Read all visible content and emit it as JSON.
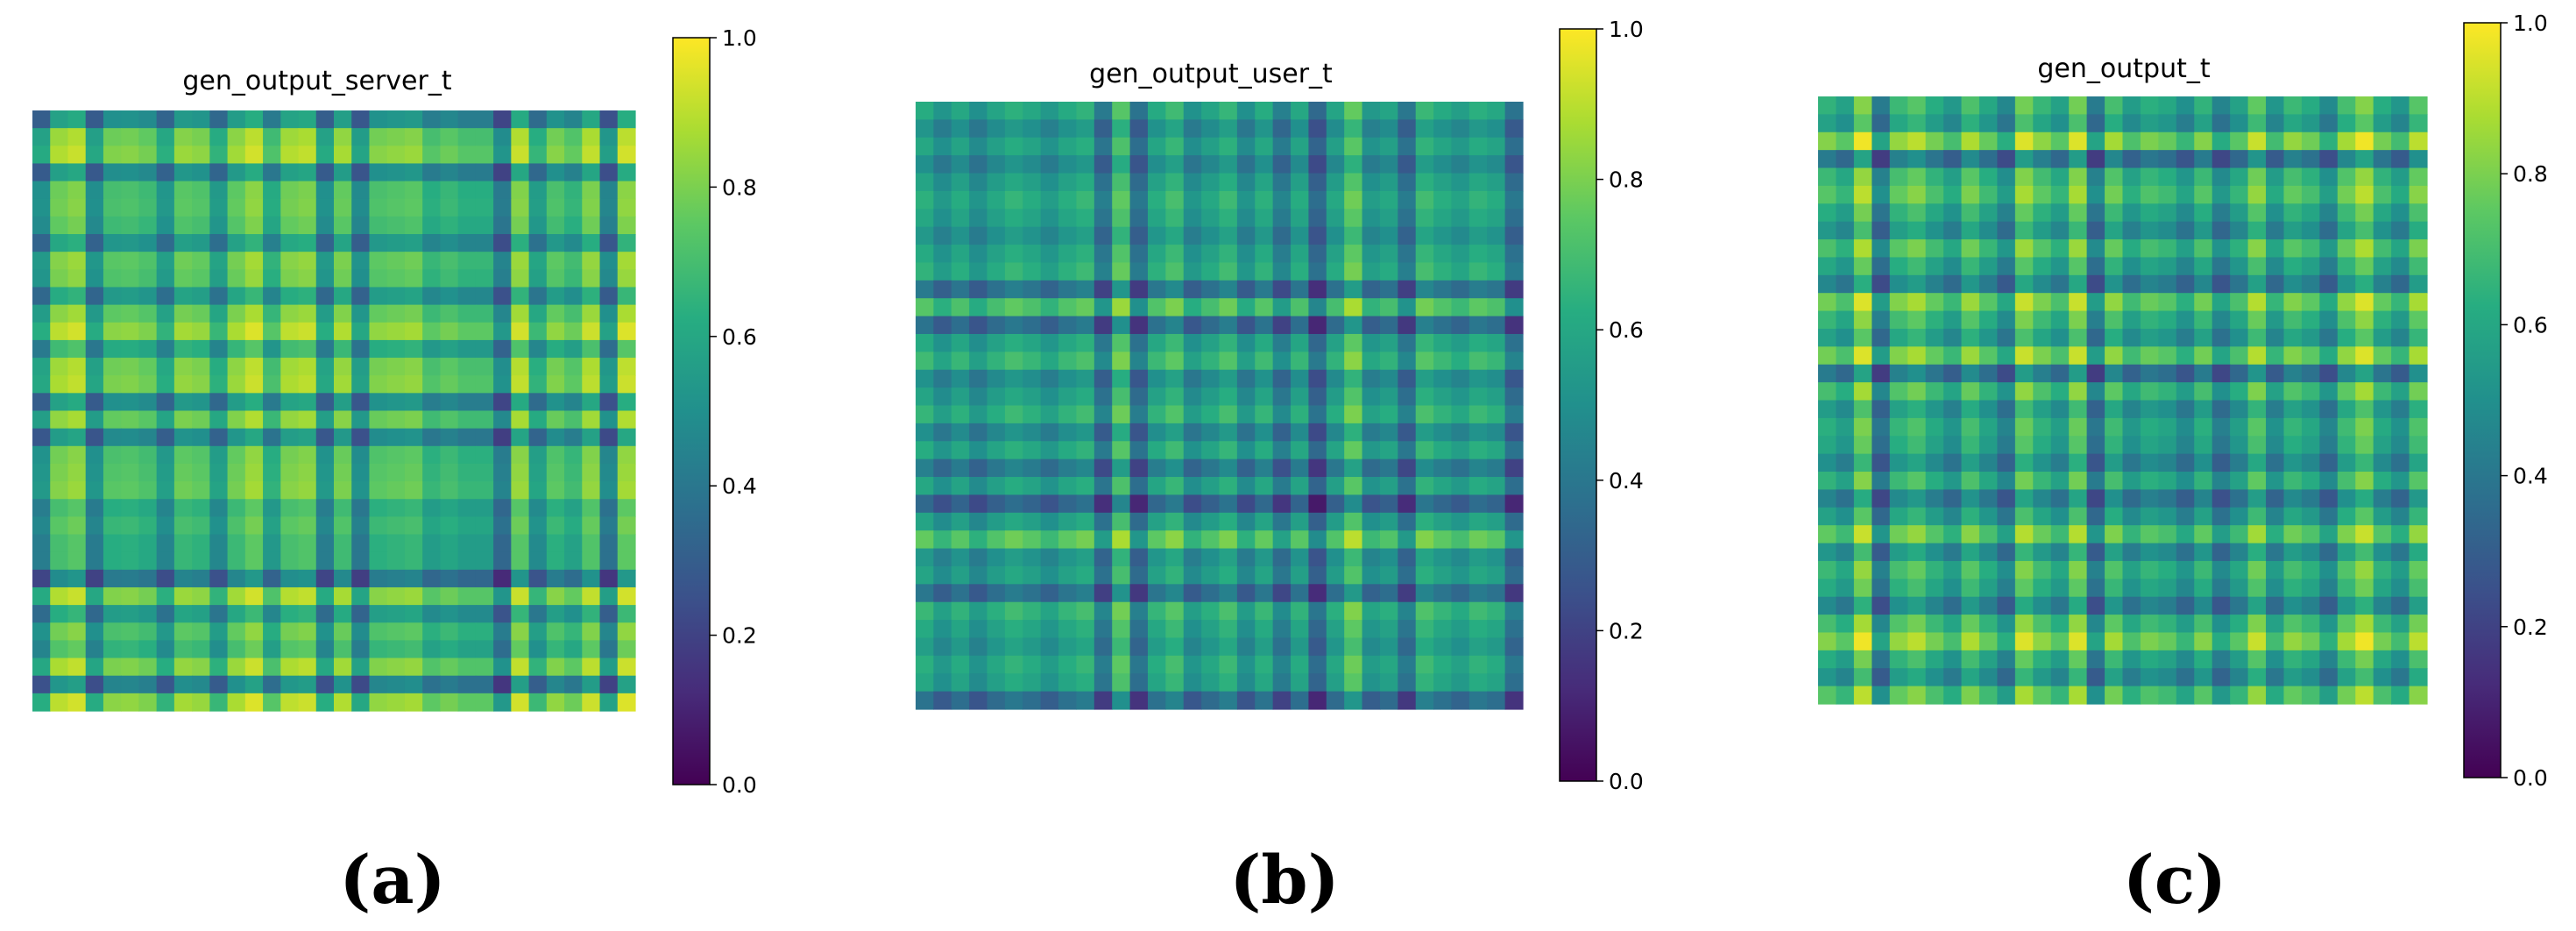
{
  "chart_data": [
    {
      "type": "heatmap",
      "title": "gen_output_server_t",
      "caption": "(a)",
      "size": 34,
      "colormap": "viridis",
      "colorbar": {
        "min": 0.0,
        "max": 1.0,
        "ticks": [
          "0.0",
          "0.2",
          "0.4",
          "0.6",
          "0.8",
          "1.0"
        ]
      },
      "profile": [
        0.3,
        0.85,
        0.92,
        0.28,
        0.7,
        0.72,
        0.66,
        0.35,
        0.78,
        0.74,
        0.38,
        0.8,
        0.95,
        0.52,
        0.86,
        0.9,
        0.3,
        0.82,
        0.25,
        0.72,
        0.75,
        0.78,
        0.55,
        0.63,
        0.55,
        0.55,
        0.12,
        0.92,
        0.4,
        0.72,
        0.6,
        0.9,
        0.2,
        0.95
      ],
      "xlabel": "",
      "ylabel": "",
      "grid": false
    },
    {
      "type": "heatmap",
      "title": "gen_output_user_t",
      "caption": "(b)",
      "size": 34,
      "colormap": "viridis",
      "colorbar": {
        "min": 0.0,
        "max": 1.0,
        "ticks": [
          "0.0",
          "0.2",
          "0.4",
          "0.6",
          "0.8",
          "1.0"
        ]
      },
      "profile": [
        0.62,
        0.42,
        0.58,
        0.38,
        0.55,
        0.66,
        0.58,
        0.45,
        0.6,
        0.68,
        0.2,
        0.85,
        0.15,
        0.6,
        0.75,
        0.4,
        0.55,
        0.7,
        0.38,
        0.62,
        0.25,
        0.58,
        0.07,
        0.55,
        0.9,
        0.45,
        0.55,
        0.18,
        0.72,
        0.6,
        0.5,
        0.65,
        0.58,
        0.15
      ],
      "xlabel": "",
      "ylabel": "",
      "grid": false
    },
    {
      "type": "heatmap",
      "title": "gen_output_t",
      "caption": "(c)",
      "size": 34,
      "colormap": "viridis",
      "colorbar": {
        "min": 0.0,
        "max": 1.0,
        "ticks": [
          "0.0",
          "0.2",
          "0.4",
          "0.6",
          "0.8",
          "1.0"
        ]
      },
      "profile": [
        0.65,
        0.5,
        0.98,
        0.18,
        0.7,
        0.82,
        0.6,
        0.42,
        0.78,
        0.55,
        0.28,
        0.92,
        0.68,
        0.5,
        0.92,
        0.18,
        0.75,
        0.45,
        0.62,
        0.55,
        0.35,
        0.65,
        0.25,
        0.5,
        0.86,
        0.4,
        0.7,
        0.58,
        0.3,
        0.75,
        0.98,
        0.6,
        0.4,
        0.82
      ],
      "xlabel": "",
      "ylabel": "",
      "grid": false
    }
  ]
}
